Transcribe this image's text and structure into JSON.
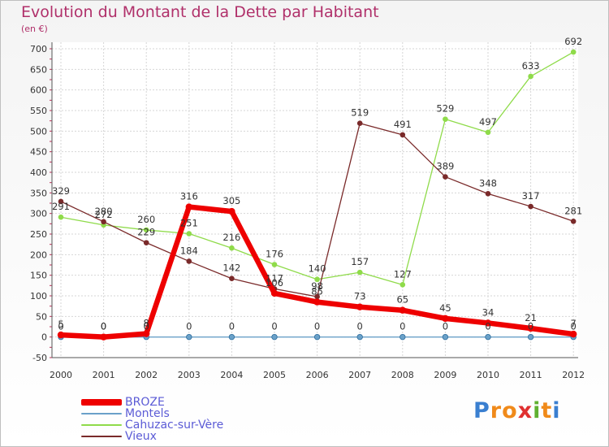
{
  "chart_data": {
    "type": "line",
    "title": "Evolution du Montant de la Dette par Habitant",
    "unit_label": "(en €)",
    "x": [
      "2000",
      "2001",
      "2002",
      "2003",
      "2004",
      "2005",
      "2006",
      "2007",
      "2008",
      "2009",
      "2010",
      "2011",
      "2012"
    ],
    "ylim": [
      -50,
      700
    ],
    "yticks": [
      -50,
      0,
      50,
      100,
      150,
      200,
      250,
      300,
      350,
      400,
      450,
      500,
      550,
      600,
      650,
      700
    ],
    "grid": true,
    "legend_position": "bottom-left",
    "series": [
      {
        "name": "BROZE",
        "color": "#ee0000",
        "values": [
          5,
          0,
          8,
          316,
          305,
          106,
          85,
          73,
          65,
          45,
          34,
          21,
          7
        ]
      },
      {
        "name": "Montels",
        "color": "#6aa1c9",
        "values": [
          0,
          0,
          0,
          0,
          0,
          0,
          0,
          0,
          0,
          0,
          0,
          0,
          0
        ]
      },
      {
        "name": "Cahuzac-sur-Vère",
        "color": "#8fdb4a",
        "values": [
          291,
          272,
          260,
          251,
          216,
          176,
          140,
          157,
          127,
          529,
          497,
          633,
          692
        ]
      },
      {
        "name": "Vieux",
        "color": "#7a2a2a",
        "values": [
          329,
          280,
          229,
          184,
          142,
          117,
          98,
          519,
          491,
          389,
          348,
          317,
          281
        ]
      }
    ]
  },
  "logo": {
    "letters": [
      "P",
      "r",
      "o",
      "x",
      "i",
      "t",
      "i"
    ],
    "colors": [
      "#3a7fd0",
      "#f08a1a",
      "#f08a1a",
      "#e03030",
      "#60b030",
      "#f08a1a",
      "#3a7fd0"
    ]
  }
}
